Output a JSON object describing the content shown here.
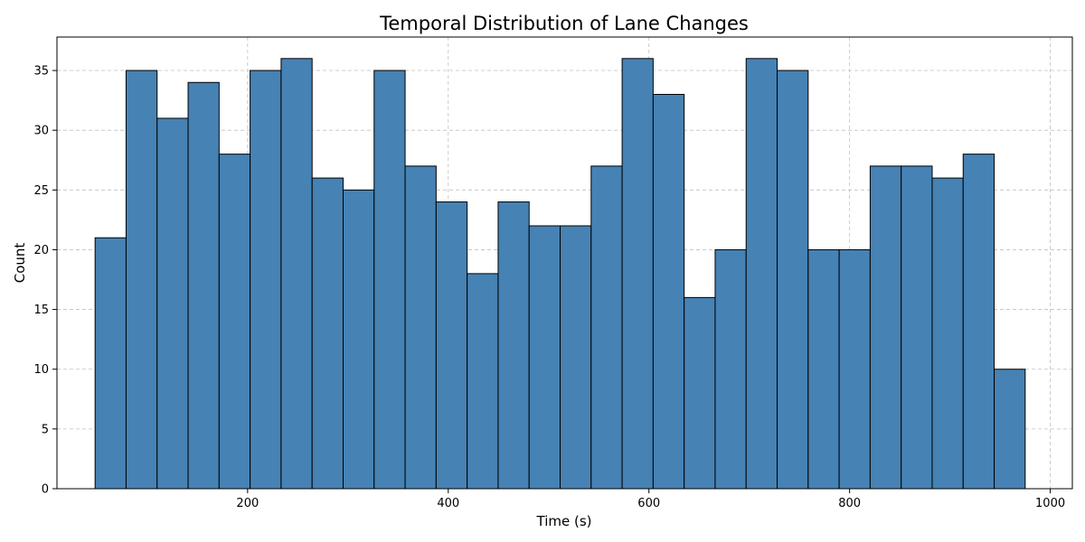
{
  "chart_data": {
    "type": "bar",
    "subtype": "histogram",
    "title": "Temporal Distribution of Lane Changes",
    "xlabel": "Time (s)",
    "ylabel": "Count",
    "x_range": [
      48,
      976
    ],
    "bin_width": 30.9,
    "values": [
      21,
      35,
      31,
      34,
      28,
      35,
      36,
      26,
      25,
      35,
      27,
      24,
      18,
      24,
      22,
      22,
      27,
      36,
      33,
      16,
      20,
      36,
      35,
      20,
      20,
      27,
      27,
      26,
      28,
      10
    ],
    "xlim": [
      10,
      1022
    ],
    "ylim": [
      0,
      37.8
    ],
    "xticks": [
      200,
      400,
      600,
      800,
      1000
    ],
    "yticks": [
      0,
      5,
      10,
      15,
      20,
      25,
      30,
      35
    ],
    "grid": true,
    "legend": "none",
    "colors": {
      "bar_fill": "#4682b4",
      "bar_edge": "#000000",
      "grid": "#c0c0c0"
    }
  }
}
